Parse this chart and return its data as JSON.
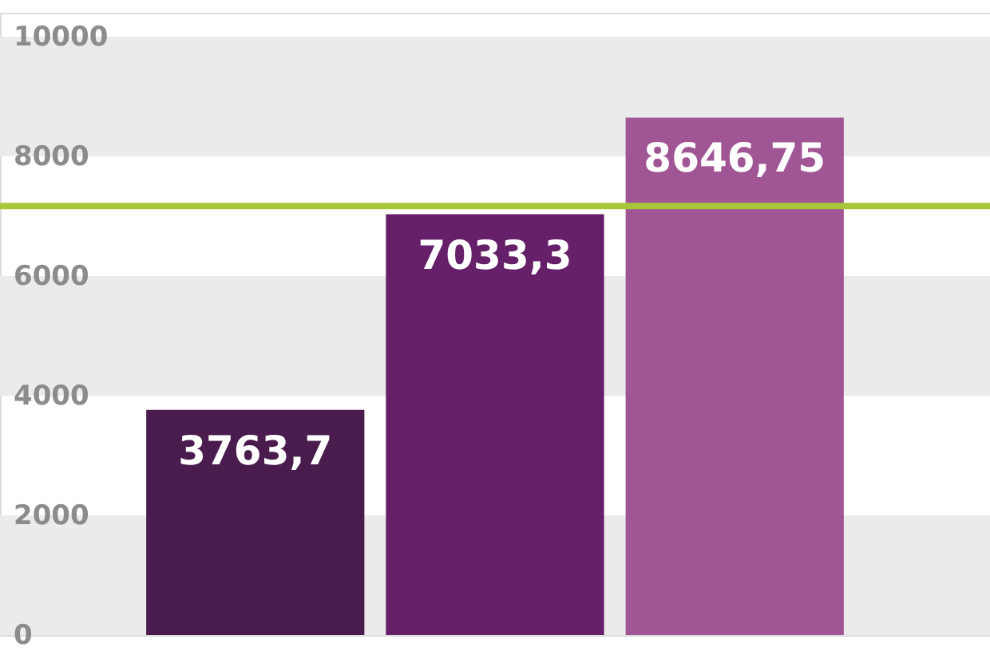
{
  "chart_data": {
    "type": "bar",
    "categories": [
      null,
      null,
      null
    ],
    "values": [
      3763.7,
      7033.3,
      8646.75
    ],
    "colors": [
      "#4a1c4e",
      "#652069",
      "#a05595"
    ],
    "value_labels": [
      "3763,7",
      "7033,3",
      "8646,75"
    ],
    "ylim": [
      0,
      10400
    ],
    "yticks": [
      0,
      2000,
      4000,
      6000,
      8000,
      10000
    ],
    "bands": [
      {
        "axis": "y",
        "from": 0,
        "to": 2000,
        "color": "#ebebeb"
      },
      {
        "axis": "y",
        "from": 4000,
        "to": 6000,
        "color": "#ebebeb"
      },
      {
        "axis": "y",
        "from": 8000,
        "to": 10000,
        "color": "#ebebeb"
      }
    ],
    "ref_lines": [
      {
        "axis": "y",
        "value": 7170,
        "color": "#a8c63a"
      }
    ]
  }
}
